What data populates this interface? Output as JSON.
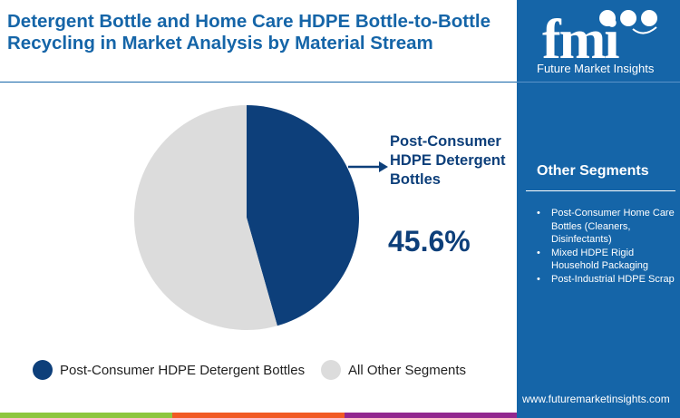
{
  "title": "Detergent Bottle and Home Care HDPE Bottle-to-Bottle Recycling in Market Analysis by Material Stream",
  "brand": {
    "logo_text": "fmi",
    "name": "Future Market Insights",
    "url": "www.futuremarketinsights.com"
  },
  "other_segments": {
    "heading": "Other Segments",
    "items": [
      "Post-Consumer Home Care Bottles (Cleaners, Disinfectants)",
      "Mixed HDPE Rigid Household Packaging",
      "Post-Industrial HDPE Scrap"
    ]
  },
  "colors": {
    "primary": "#0d3f7a",
    "other": "#dcdcdc",
    "panel": "#1565a8"
  },
  "chart_data": {
    "type": "pie",
    "title": "Detergent Bottle and Home Care HDPE Bottle-to-Bottle Recycling in Market Analysis by Material Stream",
    "slices": [
      {
        "label": "Post-Consumer HDPE Detergent Bottles",
        "value": 45.6,
        "color": "#0d3f7a"
      },
      {
        "label": "All Other Segments",
        "value": 54.4,
        "color": "#dcdcdc"
      }
    ],
    "callout": {
      "label": "Post-Consumer HDPE Detergent Bottles",
      "value_text": "45.6%"
    },
    "legend": "bottom"
  }
}
